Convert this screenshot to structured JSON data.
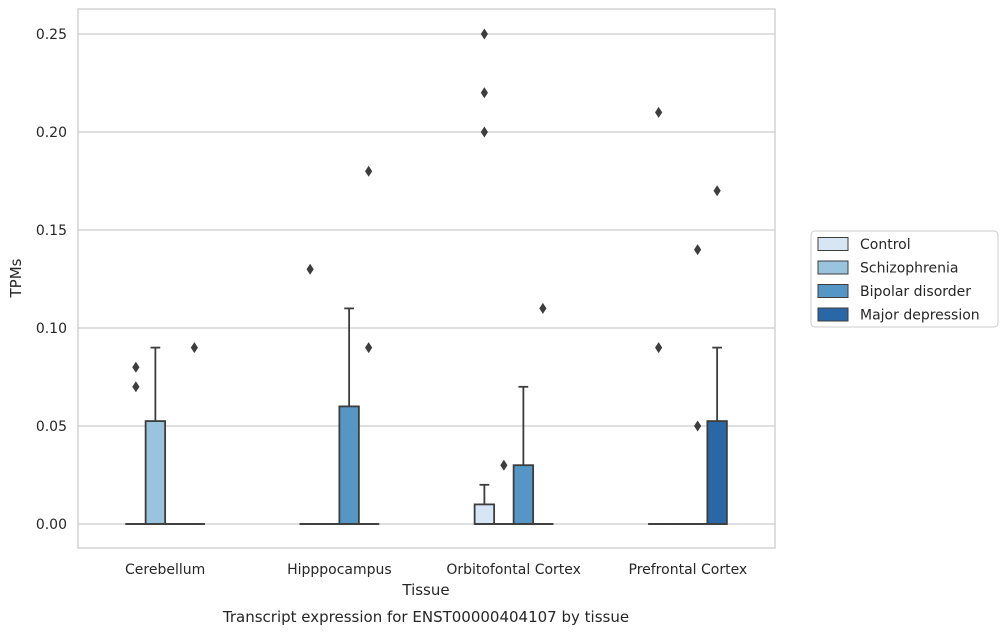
{
  "chart_data": {
    "type": "boxplot",
    "caption": "Transcript expression for ENST00000404107 by tissue",
    "xlabel": "Tissue",
    "ylabel": "TPMs",
    "ylim": [
      -0.012,
      0.263
    ],
    "yticks": [
      "0.00",
      "0.05",
      "0.10",
      "0.15",
      "0.20",
      "0.25"
    ],
    "ytick_values": [
      0,
      0.05,
      0.1,
      0.15,
      0.2,
      0.25
    ],
    "grid": "horizontal",
    "legend_position": "right",
    "categories": [
      "Cerebellum",
      "Hipppocampus",
      "Orbitofontal Cortex",
      "Prefrontal Cortex"
    ],
    "series": [
      {
        "name": "Control",
        "color": "#d6e6f4",
        "boxes": [
          {
            "q1": 0,
            "median": 0,
            "q3": 0,
            "whisker_low": 0,
            "whisker_high": 0,
            "outliers": [
              0.07,
              0.08
            ]
          },
          {
            "q1": 0,
            "median": 0,
            "q3": 0,
            "whisker_low": 0,
            "whisker_high": 0,
            "outliers": [
              0.13
            ]
          },
          {
            "q1": 0,
            "median": 0,
            "q3": 0.01,
            "whisker_low": 0,
            "whisker_high": 0.02,
            "outliers": [
              0.2,
              0.22,
              0.25
            ]
          },
          {
            "q1": 0,
            "median": 0,
            "q3": 0,
            "whisker_low": 0,
            "whisker_high": 0,
            "outliers": [
              0.09,
              0.21
            ]
          }
        ]
      },
      {
        "name": "Schizophrenia",
        "color": "#9ac4dd",
        "boxes": [
          {
            "q1": 0,
            "median": 0,
            "q3": 0.0525,
            "whisker_low": 0,
            "whisker_high": 0.09,
            "outliers": []
          },
          {
            "q1": 0,
            "median": 0,
            "q3": 0,
            "whisker_low": 0,
            "whisker_high": 0,
            "outliers": []
          },
          {
            "q1": 0,
            "median": 0,
            "q3": 0,
            "whisker_low": 0,
            "whisker_high": 0,
            "outliers": [
              0.03
            ]
          },
          {
            "q1": 0,
            "median": 0,
            "q3": 0,
            "whisker_low": 0,
            "whisker_high": 0,
            "outliers": []
          }
        ]
      },
      {
        "name": "Bipolar disorder",
        "color": "#5596c4",
        "boxes": [
          {
            "q1": 0,
            "median": 0,
            "q3": 0,
            "whisker_low": 0,
            "whisker_high": 0,
            "outliers": []
          },
          {
            "q1": 0,
            "median": 0,
            "q3": 0.06,
            "whisker_low": 0,
            "whisker_high": 0.11,
            "outliers": []
          },
          {
            "q1": 0,
            "median": 0,
            "q3": 0.03,
            "whisker_low": 0,
            "whisker_high": 0.07,
            "outliers": []
          },
          {
            "q1": 0,
            "median": 0,
            "q3": 0,
            "whisker_low": 0,
            "whisker_high": 0,
            "outliers": [
              0.05,
              0.14
            ]
          }
        ]
      },
      {
        "name": "Major depression",
        "color": "#2967a6",
        "boxes": [
          {
            "q1": 0,
            "median": 0,
            "q3": 0,
            "whisker_low": 0,
            "whisker_high": 0,
            "outliers": [
              0.09
            ]
          },
          {
            "q1": 0,
            "median": 0,
            "q3": 0,
            "whisker_low": 0,
            "whisker_high": 0,
            "outliers": [
              0.09,
              0.18
            ]
          },
          {
            "q1": 0,
            "median": 0,
            "q3": 0,
            "whisker_low": 0,
            "whisker_high": 0,
            "outliers": [
              0.11
            ]
          },
          {
            "q1": 0,
            "median": 0,
            "q3": 0.0525,
            "whisker_low": 0,
            "whisker_high": 0.09,
            "outliers": [
              0.17
            ]
          }
        ]
      }
    ]
  }
}
